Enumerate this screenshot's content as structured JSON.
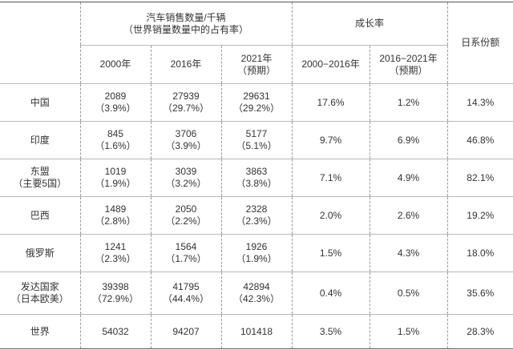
{
  "table": {
    "header": {
      "group_sales_line1": "汽车销售数量/千辆",
      "group_sales_line2": "（世界销量数量中的占有率）",
      "group_growth": "成长率",
      "share_label": "日系份额",
      "sub": {
        "y2000": "2000年",
        "y2016": "2016年",
        "y2021_line1": "2021年",
        "y2021_line2": "（预期）",
        "g1": "2000−2016年",
        "g2_line1": "2016−2021年",
        "g2_line2": "（预期）"
      }
    },
    "rows": [
      {
        "region": [
          "中国"
        ],
        "v2000": "2089",
        "s2000": "（3.9%）",
        "v2016": "27939",
        "s2016": "（29.7%）",
        "v2021": "29631",
        "s2021": "（29.2%）",
        "g1": "17.6%",
        "g2": "1.2%",
        "share": "14.3%"
      },
      {
        "region": [
          "印度"
        ],
        "v2000": "845",
        "s2000": "（1.6%）",
        "v2016": "3706",
        "s2016": "（3.9%）",
        "v2021": "5177",
        "s2021": "（5.1%）",
        "g1": "9.7%",
        "g2": "6.9%",
        "share": "46.8%"
      },
      {
        "region": [
          "东盟",
          "（主要5国）"
        ],
        "v2000": "1019",
        "s2000": "（1.9%）",
        "v2016": "3039",
        "s2016": "（3.2%）",
        "v2021": "3863",
        "s2021": "（3.8%）",
        "g1": "7.1%",
        "g2": "4.9%",
        "share": "82.1%"
      },
      {
        "region": [
          "巴西"
        ],
        "v2000": "1489",
        "s2000": "（2.8%）",
        "v2016": "2050",
        "s2016": "（2.2%）",
        "v2021": "2328",
        "s2021": "（2.3%）",
        "g1": "2.0%",
        "g2": "2.6%",
        "share": "19.2%"
      },
      {
        "region": [
          "俄罗斯"
        ],
        "v2000": "1241",
        "s2000": "（2.3%）",
        "v2016": "1564",
        "s2016": "（1.7%）",
        "v2021": "1926",
        "s2021": "（1.9%）",
        "g1": "1.5%",
        "g2": "4.3%",
        "share": "18.0%"
      },
      {
        "region": [
          "发达国家",
          "（日本欧美）"
        ],
        "v2000": "39398",
        "s2000": "（72.9%）",
        "v2016": "41795",
        "s2016": "（44.4%）",
        "v2021": "42894",
        "s2021": "（42.3%）",
        "g1": "0.4%",
        "g2": "0.5%",
        "share": "35.6%"
      },
      {
        "region": [
          "世界"
        ],
        "v2000": "54032",
        "s2000": "",
        "v2016": "94207",
        "s2016": "",
        "v2021": "101418",
        "s2021": "",
        "g1": "3.5%",
        "g2": "1.5%",
        "share": "28.3%"
      }
    ]
  }
}
